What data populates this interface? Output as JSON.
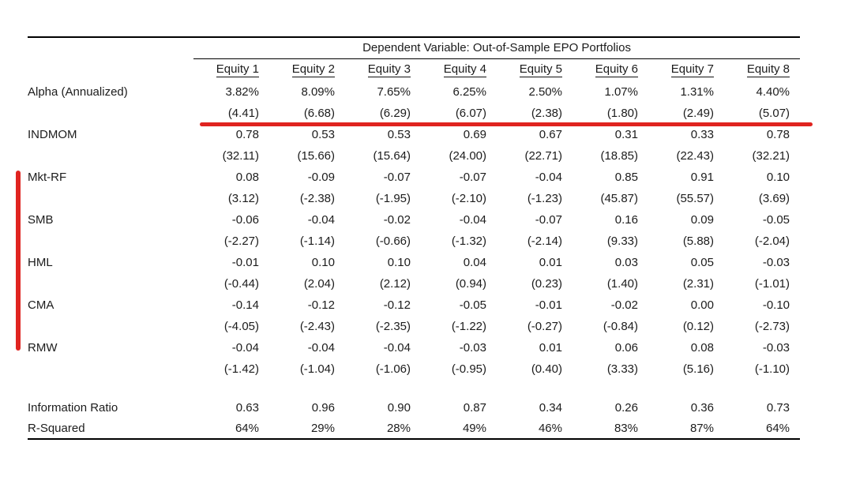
{
  "table": {
    "title": "Dependent Variable: Out-of-Sample EPO Portfolios",
    "columns": [
      "Equity 1",
      "Equity 2",
      "Equity 3",
      "Equity 4",
      "Equity 5",
      "Equity 6",
      "Equity 7",
      "Equity 8"
    ],
    "coef_rows": [
      {
        "label": "Alpha (Annualized)",
        "values": [
          "3.82%",
          "8.09%",
          "7.65%",
          "6.25%",
          "2.50%",
          "1.07%",
          "1.31%",
          "4.40%"
        ],
        "tstats": [
          "(4.41)",
          "(6.68)",
          "(6.29)",
          "(6.07)",
          "(2.38)",
          "(1.80)",
          "(2.49)",
          "(5.07)"
        ]
      },
      {
        "label": "INDMOM",
        "values": [
          "0.78",
          "0.53",
          "0.53",
          "0.69",
          "0.67",
          "0.31",
          "0.33",
          "0.78"
        ],
        "tstats": [
          "(32.11)",
          "(15.66)",
          "(15.64)",
          "(24.00)",
          "(22.71)",
          "(18.85)",
          "(22.43)",
          "(32.21)"
        ]
      },
      {
        "label": "Mkt-RF",
        "values": [
          "0.08",
          "-0.09",
          "-0.07",
          "-0.07",
          "-0.04",
          "0.85",
          "0.91",
          "0.10"
        ],
        "tstats": [
          "(3.12)",
          "(-2.38)",
          "(-1.95)",
          "(-2.10)",
          "(-1.23)",
          "(45.87)",
          "(55.57)",
          "(3.69)"
        ]
      },
      {
        "label": "SMB",
        "values": [
          "-0.06",
          "-0.04",
          "-0.02",
          "-0.04",
          "-0.07",
          "0.16",
          "0.09",
          "-0.05"
        ],
        "tstats": [
          "(-2.27)",
          "(-1.14)",
          "(-0.66)",
          "(-1.32)",
          "(-2.14)",
          "(9.33)",
          "(5.88)",
          "(-2.04)"
        ]
      },
      {
        "label": "HML",
        "values": [
          "-0.01",
          "0.10",
          "0.10",
          "0.04",
          "0.01",
          "0.03",
          "0.05",
          "-0.03"
        ],
        "tstats": [
          "(-0.44)",
          "(2.04)",
          "(2.12)",
          "(0.94)",
          "(0.23)",
          "(1.40)",
          "(2.31)",
          "(-1.01)"
        ]
      },
      {
        "label": "CMA",
        "values": [
          "-0.14",
          "-0.12",
          "-0.12",
          "-0.05",
          "-0.01",
          "-0.02",
          "0.00",
          "-0.10"
        ],
        "tstats": [
          "(-4.05)",
          "(-2.43)",
          "(-2.35)",
          "(-1.22)",
          "(-0.27)",
          "(-0.84)",
          "(0.12)",
          "(-2.73)"
        ]
      },
      {
        "label": "RMW",
        "values": [
          "-0.04",
          "-0.04",
          "-0.04",
          "-0.03",
          "0.01",
          "0.06",
          "0.08",
          "-0.03"
        ],
        "tstats": [
          "(-1.42)",
          "(-1.04)",
          "(-1.06)",
          "(-0.95)",
          "(0.40)",
          "(3.33)",
          "(5.16)",
          "(-1.10)"
        ]
      }
    ],
    "summary_rows": [
      {
        "label": "Information Ratio",
        "values": [
          "0.63",
          "0.96",
          "0.90",
          "0.87",
          "0.34",
          "0.26",
          "0.36",
          "0.73"
        ]
      },
      {
        "label": "R-Squared",
        "values": [
          "64%",
          "29%",
          "28%",
          "49%",
          "46%",
          "83%",
          "87%",
          "64%"
        ]
      }
    ]
  },
  "annotations": {
    "red_hex": "#e02420",
    "alpha_tstat_underline_rows": "Alpha (Annualized) t-statistics",
    "bracketed_factor_rows": [
      "Mkt-RF",
      "SMB",
      "HML",
      "CMA",
      "RMW"
    ]
  }
}
